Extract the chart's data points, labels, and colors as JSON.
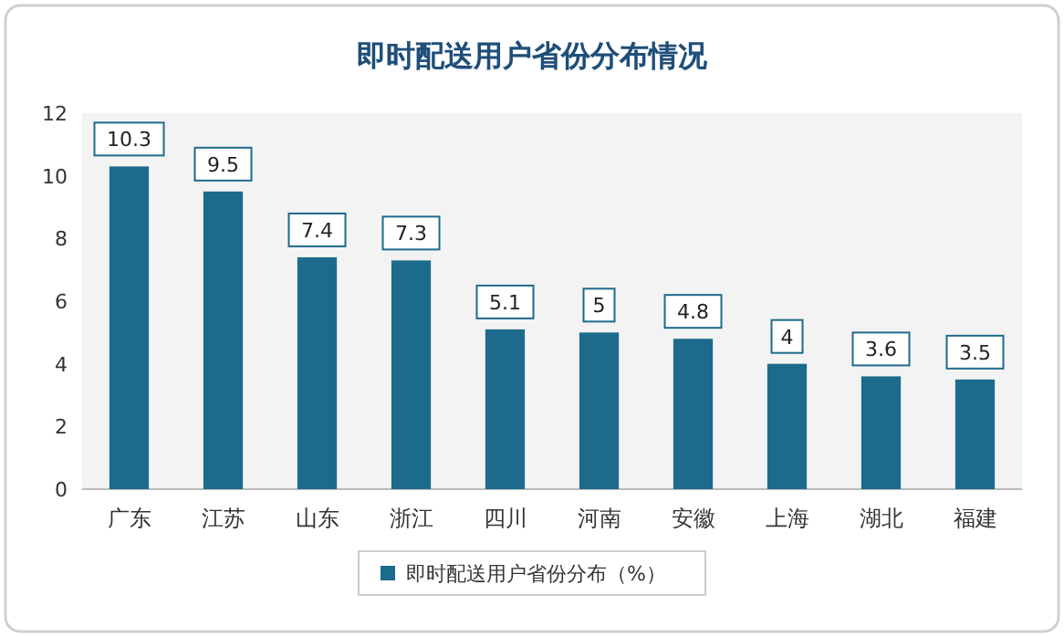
{
  "chart_data": {
    "type": "bar",
    "title": "即时配送用户省份分布情况",
    "categories": [
      "广东",
      "江苏",
      "山东",
      "浙江",
      "四川",
      "河南",
      "安徽",
      "上海",
      "湖北",
      "福建"
    ],
    "series": [
      {
        "name": "即时配送用户省份分布（%）",
        "color": "#1d6b8c",
        "values": [
          10.3,
          9.5,
          7.4,
          7.3,
          5.1,
          5,
          4.8,
          4,
          3.6,
          3.5
        ]
      }
    ],
    "ylim": [
      0,
      12
    ],
    "yticks": [
      0,
      2,
      4,
      6,
      8,
      10,
      12
    ],
    "data_labels": true,
    "legend": "bottom"
  }
}
